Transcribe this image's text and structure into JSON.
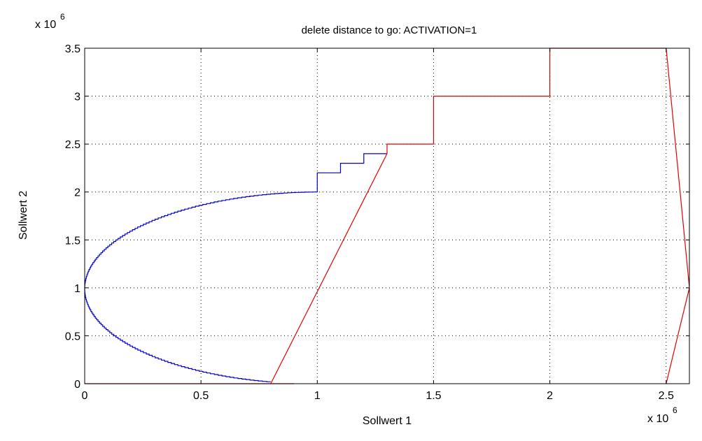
{
  "chart_data": {
    "type": "line",
    "title": "delete distance to go: ACTIVATION=1",
    "xlabel": "Sollwert 1",
    "ylabel": "Sollwert 2",
    "x_multiplier": "x 10",
    "x_multiplier_exp": "6",
    "y_multiplier": "x 10",
    "y_multiplier_exp": "6",
    "xlim": [
      0,
      2.6
    ],
    "ylim": [
      0,
      3.5
    ],
    "xticks": [
      "0",
      "0.5",
      "1",
      "1.5",
      "2",
      "2.5"
    ],
    "xtick_values": [
      0,
      0.5,
      1,
      1.5,
      2,
      2.5
    ],
    "yticks": [
      "0",
      "0.5",
      "1",
      "1.5",
      "2",
      "2.5",
      "3",
      "3.5"
    ],
    "ytick_values": [
      0,
      0.5,
      1,
      1.5,
      2,
      2.5,
      3,
      3.5
    ],
    "grid": true,
    "series": [
      {
        "color": "#0000c8",
        "style": "stairs",
        "description_points": "half-ellipse from (0.8,0.02) around (0,1) to (1,2), then steps",
        "ellipse": {
          "cx": 1.0,
          "cy": 1.0,
          "rx": 1.0,
          "ry": 1.0,
          "from_x": 0.8
        },
        "steps": [
          [
            1.0,
            2.0
          ],
          [
            1.0,
            2.2
          ],
          [
            1.1,
            2.2
          ],
          [
            1.1,
            2.3
          ],
          [
            1.2,
            2.3
          ],
          [
            1.2,
            2.4
          ],
          [
            1.3,
            2.4
          ]
        ]
      },
      {
        "color": "#e60000",
        "style": "line",
        "points": [
          [
            0.0,
            0.0
          ],
          [
            0.9,
            0.0
          ],
          [
            0.8,
            0.0
          ],
          [
            1.3,
            2.4
          ],
          [
            1.3,
            2.5
          ],
          [
            1.5,
            2.5
          ],
          [
            1.5,
            3.0
          ],
          [
            2.0,
            3.0
          ],
          [
            2.0,
            3.5
          ],
          [
            2.5,
            3.5
          ],
          [
            2.6,
            1.0
          ],
          [
            2.5,
            0.0
          ]
        ]
      }
    ]
  }
}
